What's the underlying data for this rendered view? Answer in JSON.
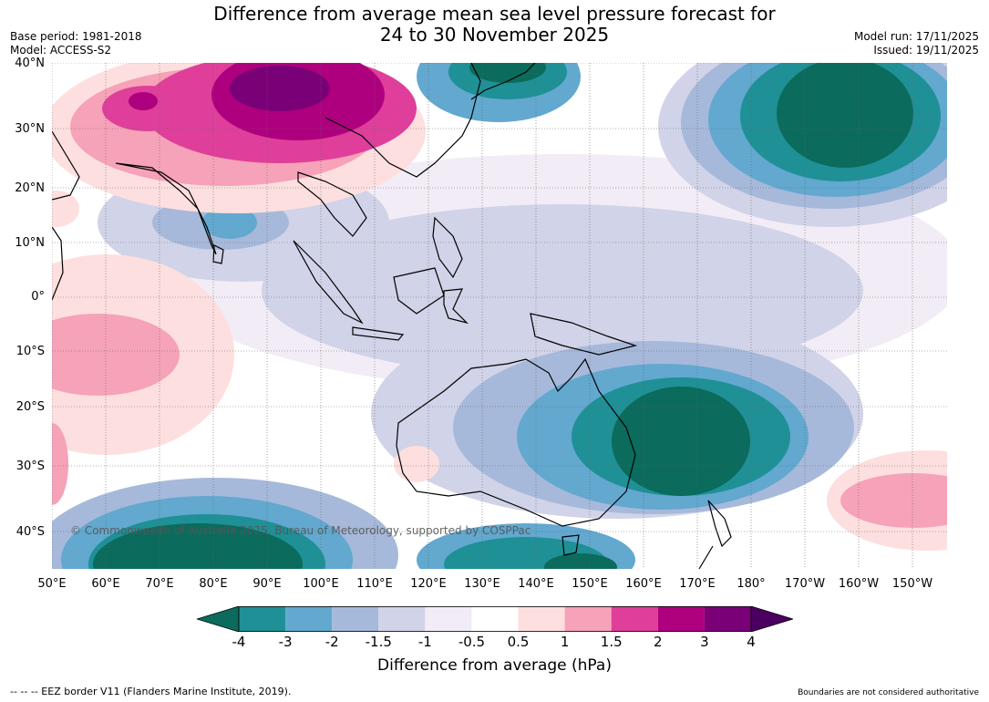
{
  "header": {
    "title_line1": "Difference from average mean sea level pressure forecast for",
    "title_line2": "24 to 30 November 2025",
    "base_period": "Base period: 1981-2018",
    "model": "Model: ACCESS-S2",
    "model_run": "Model run: 17/11/2025",
    "issued": "Issued: 19/11/2025"
  },
  "map": {
    "latitude_labels": [
      "40°N",
      "30°N",
      "20°N",
      "10°N",
      "0°",
      "10°S",
      "20°S",
      "30°S",
      "40°S"
    ],
    "longitude_labels": [
      "50°E",
      "60°E",
      "70°E",
      "80°E",
      "90°E",
      "100°E",
      "110°E",
      "120°E",
      "130°E",
      "140°E",
      "150°E",
      "160°E",
      "170°E",
      "180°",
      "170°W",
      "160°W",
      "150°W"
    ],
    "copyright": "© Commonwealth of Australia 2025, Bureau of Meteorology, supported by COSPPac"
  },
  "colorbar": {
    "tick_labels": [
      "-4",
      "-3",
      "-2",
      "-1.5",
      "-1",
      "-0.5",
      "0.5",
      "1",
      "1.5",
      "2",
      "3",
      "4"
    ],
    "colors": [
      "#0b6b5c",
      "#1f9096",
      "#62a8cf",
      "#a6b9da",
      "#d1d3e8",
      "#f2ecf6",
      "#ffffff",
      "#fddfdf",
      "#f6a2b8",
      "#df3f9a",
      "#ae007e",
      "#7a0077",
      "#4b0060"
    ],
    "label": "Difference from average (hPa)"
  },
  "footer": {
    "eez_note": "--  --  -- EEZ border V11 (Flanders Marine Institute, 2019).",
    "disclaimer": "Boundaries are not considered authoritative"
  }
}
